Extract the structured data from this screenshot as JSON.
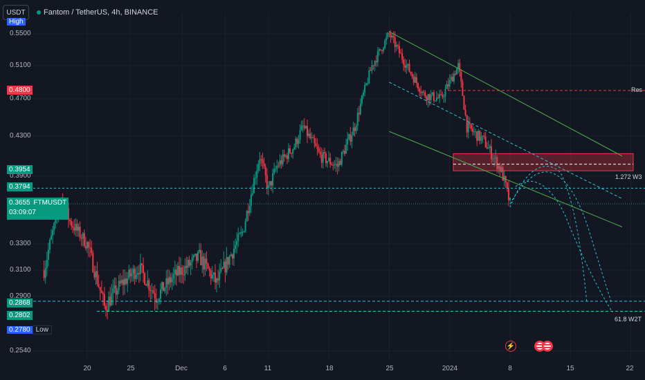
{
  "header": {
    "currency_button": "USDT",
    "title": "Fantom / TetherUS, 4h, BINANCE"
  },
  "price_axis": {
    "ticks": [
      "0.5500",
      "0.5100",
      "0.4700",
      "0.4300",
      "0.3900",
      "0.3300",
      "0.3100",
      "0.2900",
      "0.2540"
    ]
  },
  "price_labels": {
    "high": {
      "value": "0.5500",
      "tag": "High"
    },
    "res": {
      "value": "0.4800",
      "color": "#f23645"
    },
    "level_1": {
      "value": "0.3954",
      "color": "#089981"
    },
    "level_2": {
      "value": "0.3794",
      "color": "#089981"
    },
    "current": {
      "value": "0.3655",
      "symbol": "FTMUSDT",
      "countdown": "03:09:07",
      "color": "#089981"
    },
    "level_3": {
      "value": "0.2868",
      "color": "#089981"
    },
    "level_4": {
      "value": "0.2802",
      "color": "#089981"
    },
    "low": {
      "value": "0.2780",
      "tag": "Low",
      "color": "#2962ff"
    }
  },
  "time_axis": {
    "ticks": [
      "20",
      "25",
      "Dec",
      "6",
      "11",
      "18",
      "25",
      "2024",
      "8",
      "15",
      "22"
    ]
  },
  "annotations": {
    "res": "Res",
    "w3": "1.272 W3",
    "w2t": "61.8 W2T"
  },
  "colors": {
    "background": "#131722",
    "up": "#089981",
    "down": "#f23645",
    "channel": "#4caf50",
    "dashed_cyan": "#26c6da",
    "zone": "#f23645"
  },
  "event_icons": [
    "lightning-icon",
    "us-flag-icon",
    "us-flag-icon"
  ],
  "chart_data": {
    "type": "candlestick",
    "symbol": "FTMUSDT",
    "interval": "4h",
    "exchange": "BINANCE",
    "y_range": [
      0.245,
      0.575
    ],
    "x_range": [
      "2023-11-15",
      "2024-01-22"
    ],
    "x_ticks": [
      "20",
      "25",
      "Dec",
      "6",
      "11",
      "18",
      "25",
      "2024",
      "8",
      "15",
      "22"
    ],
    "y_ticks": [
      0.55,
      0.51,
      0.47,
      0.43,
      0.39,
      0.33,
      0.31,
      0.29,
      0.254
    ],
    "highlight_levels": [
      0.55,
      0.48,
      0.3954,
      0.3794,
      0.3655,
      0.2868,
      0.2802,
      0.278
    ],
    "approx_close_path": [
      {
        "x": "2023-11-15",
        "y": 0.31
      },
      {
        "x": "2023-11-17",
        "y": 0.37
      },
      {
        "x": "2023-11-18",
        "y": 0.35
      },
      {
        "x": "2023-11-20",
        "y": 0.33
      },
      {
        "x": "2023-11-22",
        "y": 0.283
      },
      {
        "x": "2023-11-24",
        "y": 0.3
      },
      {
        "x": "2023-11-26",
        "y": 0.312
      },
      {
        "x": "2023-11-28",
        "y": 0.29
      },
      {
        "x": "2023-11-30",
        "y": 0.305
      },
      {
        "x": "2023-12-03",
        "y": 0.32
      },
      {
        "x": "2023-12-05",
        "y": 0.3
      },
      {
        "x": "2023-12-08",
        "y": 0.34
      },
      {
        "x": "2023-12-10",
        "y": 0.41
      },
      {
        "x": "2023-12-11",
        "y": 0.378
      },
      {
        "x": "2023-12-12",
        "y": 0.4
      },
      {
        "x": "2023-12-14",
        "y": 0.42
      },
      {
        "x": "2023-12-15",
        "y": 0.44
      },
      {
        "x": "2023-12-17",
        "y": 0.41
      },
      {
        "x": "2023-12-19",
        "y": 0.4
      },
      {
        "x": "2023-12-21",
        "y": 0.44
      },
      {
        "x": "2023-12-23",
        "y": 0.51
      },
      {
        "x": "2023-12-25",
        "y": 0.55
      },
      {
        "x": "2023-12-27",
        "y": 0.51
      },
      {
        "x": "2023-12-29",
        "y": 0.475
      },
      {
        "x": "2023-12-31",
        "y": 0.47
      },
      {
        "x": "2024-01-02",
        "y": 0.51
      },
      {
        "x": "2024-01-03",
        "y": 0.44
      },
      {
        "x": "2024-01-05",
        "y": 0.425
      },
      {
        "x": "2024-01-07",
        "y": 0.395
      },
      {
        "x": "2024-01-08",
        "y": 0.3655
      }
    ],
    "zone": {
      "top": 0.4125,
      "bottom": 0.3954
    },
    "channel_upper": [
      {
        "x": "2023-12-25",
        "y": 0.553
      },
      {
        "x": "2024-01-21",
        "y": 0.41
      }
    ],
    "channel_lower": [
      {
        "x": "2023-12-25",
        "y": 0.435
      },
      {
        "x": "2024-01-21",
        "y": 0.345
      }
    ],
    "mid_dashed": [
      {
        "x": "2023-12-25",
        "y": 0.49
      },
      {
        "x": "2024-01-21",
        "y": 0.37
      }
    ]
  }
}
